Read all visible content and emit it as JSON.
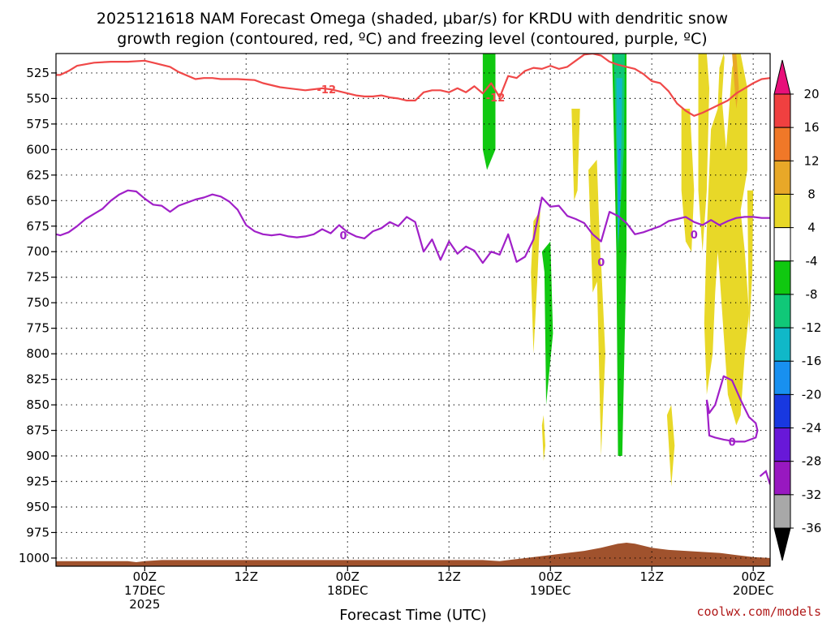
{
  "chart_data": {
    "type": "heatmap",
    "title_lines": [
      "2025121618 NAM Forecast Omega (shaded, μbar/s) for KRDU with dendritic snow",
      "growth region (contoured, red, ºC) and freezing level (contoured, purple, ºC)"
    ],
    "xlabel": "Forecast Time (UTC)",
    "credit": "coolwx.com/models",
    "y_ticks": [
      525,
      550,
      575,
      600,
      625,
      650,
      675,
      700,
      725,
      750,
      775,
      800,
      825,
      850,
      875,
      900,
      925,
      950,
      975,
      1000
    ],
    "ylim": [
      1008,
      506
    ],
    "xlim_hours": [
      -10.5,
      74
    ],
    "x_ticks": [
      {
        "hour": 0,
        "lines": [
          "00Z",
          "17DEC",
          "2025"
        ]
      },
      {
        "hour": 12,
        "lines": [
          "12Z"
        ]
      },
      {
        "hour": 24,
        "lines": [
          "00Z",
          "18DEC"
        ]
      },
      {
        "hour": 36,
        "lines": [
          "12Z"
        ]
      },
      {
        "hour": 48,
        "lines": [
          "00Z",
          "19DEC"
        ]
      },
      {
        "hour": 60,
        "lines": [
          "12Z"
        ]
      },
      {
        "hour": 72,
        "lines": [
          "00Z",
          "20DEC"
        ]
      }
    ],
    "grid": true,
    "colorbar": {
      "ticks": [
        20,
        16,
        12,
        8,
        4,
        -4,
        -8,
        -12,
        -16,
        -20,
        -24,
        -28,
        -32,
        -36
      ],
      "bands": [
        {
          "range": [
            16,
            20
          ],
          "color": "#f04040"
        },
        {
          "range": [
            12,
            16
          ],
          "color": "#f07828"
        },
        {
          "range": [
            8,
            12
          ],
          "color": "#e8a828"
        },
        {
          "range": [
            4,
            8
          ],
          "color": "#e8d828"
        },
        {
          "range": [
            -4,
            4
          ],
          "color": "#ffffff"
        },
        {
          "range": [
            -8,
            -4
          ],
          "color": "#10c810"
        },
        {
          "range": [
            -12,
            -8
          ],
          "color": "#10c878"
        },
        {
          "range": [
            -16,
            -12
          ],
          "color": "#10b8c8"
        },
        {
          "range": [
            -20,
            -16
          ],
          "color": "#1890f0"
        },
        {
          "range": [
            -24,
            -20
          ],
          "color": "#1838e0"
        },
        {
          "range": [
            -28,
            -24
          ],
          "color": "#6818d8"
        },
        {
          "range": [
            -32,
            -28
          ],
          "color": "#9818c0"
        },
        {
          "range": [
            -36,
            -32
          ],
          "color": "#a8a8a8"
        }
      ],
      "top_arrow_color": "#e8107a",
      "bottom_arrow_color": "#000000"
    },
    "dendritic_contour": {
      "value": -12,
      "label": "-12",
      "color": "#f04848",
      "x": [
        -10.5,
        -10,
        -9,
        -8,
        -6,
        -4,
        -2,
        0,
        1,
        3,
        4,
        6,
        7,
        8,
        9,
        11,
        13,
        14,
        16,
        17,
        19,
        21,
        22,
        23,
        24,
        25,
        26,
        27,
        28,
        29,
        30,
        31,
        32,
        33,
        34,
        35,
        36,
        37,
        38,
        39,
        40,
        41,
        42,
        43,
        44,
        45,
        46,
        47,
        48,
        49,
        50,
        51,
        52,
        53,
        54,
        55,
        56,
        57,
        58,
        59,
        60,
        61,
        62,
        63,
        64,
        65,
        66,
        67,
        68,
        69,
        70,
        71,
        72,
        73,
        74
      ],
      "y": [
        527,
        527,
        523,
        518,
        515,
        514,
        514,
        513,
        515,
        519,
        524,
        531,
        530,
        530,
        531,
        531,
        532,
        535,
        539,
        540,
        542,
        540,
        541,
        543,
        545,
        547,
        548,
        548,
        547,
        549,
        550,
        552,
        552,
        544,
        542,
        542,
        544,
        540,
        544,
        538,
        545,
        535,
        549,
        528,
        530,
        523,
        520,
        521,
        518,
        521,
        519,
        513,
        507,
        506,
        508,
        514,
        517,
        519,
        521,
        526,
        533,
        535,
        543,
        555,
        562,
        567,
        564,
        560,
        556,
        552,
        545,
        540,
        535,
        531,
        530
      ]
    },
    "freezing_contour": {
      "value": 0,
      "label": "0",
      "color": "#a020c8",
      "x": [
        -10.5,
        -10,
        -9,
        -8,
        -7,
        -6,
        -5,
        -4,
        -3,
        -2,
        -1,
        0,
        1,
        2,
        3,
        4,
        5,
        6,
        7,
        8,
        9,
        10,
        11,
        12,
        13,
        14,
        15,
        16,
        17,
        18,
        19,
        20,
        21,
        22,
        23,
        24,
        25,
        26,
        27,
        28,
        29,
        30,
        31,
        32,
        33,
        34,
        35,
        36,
        37,
        38,
        39,
        40,
        41,
        42,
        43,
        44,
        45,
        46,
        47,
        48,
        49,
        50,
        51,
        52,
        53,
        54,
        55,
        56,
        57,
        58,
        59,
        60,
        61,
        62,
        63,
        64,
        65,
        66,
        67,
        68,
        69,
        70,
        71,
        72,
        73,
        74
      ],
      "y": [
        683,
        684,
        681,
        675,
        668,
        663,
        658,
        650,
        644,
        640,
        641,
        648,
        654,
        655,
        661,
        655,
        652,
        649,
        647,
        644,
        646,
        651,
        659,
        674,
        680,
        683,
        684,
        683,
        685,
        686,
        685,
        683,
        678,
        682,
        674,
        681,
        685,
        687,
        680,
        677,
        671,
        675,
        666,
        671,
        700,
        688,
        708,
        690,
        702,
        695,
        699,
        711,
        700,
        703,
        683,
        710,
        705,
        688,
        647,
        656,
        655,
        665,
        668,
        672,
        683,
        690,
        661,
        665,
        672,
        683,
        681,
        678,
        675,
        670,
        668,
        666,
        671,
        674,
        669,
        674,
        670,
        667,
        666,
        666,
        667,
        667
      ]
    },
    "freezing_loop": {
      "label": "0",
      "x": [
        66.5,
        66.8,
        67.5,
        68.5,
        69.5,
        70.5,
        71.5,
        72.3,
        72.5,
        72.3,
        71,
        70,
        68.5,
        67.5,
        66.8,
        66.5
      ],
      "y": [
        845,
        858,
        850,
        822,
        826,
        845,
        862,
        868,
        875,
        882,
        886,
        886,
        884,
        882,
        880,
        845
      ]
    },
    "freezing_edge": {
      "x": [
        72.8,
        73.5,
        74
      ],
      "y": [
        920,
        915,
        928
      ]
    },
    "omega_shading": [
      {
        "value": -4,
        "x": [
          24,
          25.5,
          25.5,
          24,
          24.5,
          24
        ],
        "y": [
          506,
          506,
          545,
          572,
          545,
          506
        ]
      },
      {
        "value": -4,
        "x": [
          39.3,
          42,
          42.3,
          41.5,
          43.5,
          44.5,
          43.2,
          42,
          41.5,
          41.5,
          40.5,
          40,
          39.5,
          39.3
        ],
        "y": [
          506,
          506,
          580,
          640,
          612,
          590,
          640,
          686,
          745,
          850,
          850,
          710,
          640,
          506
        ]
      },
      {
        "value": -8,
        "x": [
          40,
          41.5,
          41.5,
          40.5,
          40,
          40
        ],
        "y": [
          506,
          506,
          600,
          620,
          600,
          506
        ]
      },
      {
        "value": -4,
        "x": [
          45.5,
          46.5,
          47.2,
          47.5,
          47,
          46,
          45.5,
          45.2,
          45,
          45.5
        ],
        "y": [
          720,
          700,
          780,
          850,
          930,
          960,
          930,
          850,
          760,
          720
        ]
      },
      {
        "value": -4,
        "x": [
          47,
          48.5,
          49.5,
          49,
          48,
          47,
          46.5,
          47
        ],
        "y": [
          700,
          700,
          780,
          850,
          920,
          980,
          850,
          700
        ]
      },
      {
        "value": -8,
        "x": [
          47,
          48,
          48.3,
          47.5,
          47.3,
          47
        ],
        "y": [
          700,
          690,
          780,
          850,
          720,
          700
        ]
      },
      {
        "value": -4,
        "x": [
          49,
          50,
          51,
          51.5,
          51,
          50,
          49.5,
          50,
          49.5,
          49
        ],
        "y": [
          690,
          660,
          610,
          630,
          660,
          700,
          760,
          800,
          830,
          690
        ]
      },
      {
        "value": -4,
        "x": [
          51.5,
          52,
          52.5,
          52,
          51.5
        ],
        "y": [
          850,
          840,
          880,
          920,
          850
        ]
      },
      {
        "value": -4,
        "x": [
          53.5,
          54,
          54.5,
          54,
          53.5
        ],
        "y": [
          750,
          740,
          850,
          950,
          750
        ]
      },
      {
        "value": -4,
        "x": [
          55,
          57.5,
          57.5,
          57,
          57.5,
          57.5,
          56.5,
          56,
          55.5,
          55.5,
          55,
          55
        ],
        "y": [
          506,
          506,
          600,
          800,
          900,
          950,
          960,
          920,
          800,
          650,
          550,
          506
        ]
      },
      {
        "value": -8,
        "x": [
          55.3,
          57,
          57,
          56.5,
          56,
          55.8,
          55.3
        ],
        "y": [
          506,
          506,
          700,
          900,
          900,
          700,
          506
        ]
      },
      {
        "value": -12,
        "x": [
          55.5,
          56.8,
          56.7,
          56,
          55.8,
          55.5
        ],
        "y": [
          506,
          506,
          600,
          700,
          600,
          506
        ]
      },
      {
        "value": -16,
        "x": [
          55.8,
          56.5,
          56.3,
          56,
          55.8
        ],
        "y": [
          530,
          530,
          650,
          690,
          530
        ]
      },
      {
        "value": -20,
        "x": [
          56,
          56.3,
          56.1,
          56
        ],
        "y": [
          600,
          600,
          690,
          600
        ]
      },
      {
        "value": -4,
        "x": [
          58,
          58.5,
          59,
          58.5,
          58
        ],
        "y": [
          830,
          800,
          850,
          960,
          830
        ]
      },
      {
        "value": 4,
        "x": [
          50.5,
          51.5,
          51.2,
          50.8,
          50.5
        ],
        "y": [
          560,
          560,
          640,
          650,
          560
        ]
      },
      {
        "value": 4,
        "x": [
          52.5,
          53.5,
          53.8,
          54,
          53,
          52.5
        ],
        "y": [
          620,
          610,
          680,
          720,
          740,
          620
        ]
      },
      {
        "value": 4,
        "x": [
          46,
          46.8,
          46.5,
          46,
          45.7,
          46
        ],
        "y": [
          670,
          660,
          720,
          800,
          720,
          670
        ]
      },
      {
        "value": 4,
        "x": [
          53.5,
          54,
          54.5,
          54,
          53.5
        ],
        "y": [
          720,
          710,
          800,
          900,
          720
        ]
      },
      {
        "value": 4,
        "x": [
          47,
          47.2,
          47.4,
          47.2,
          47
        ],
        "y": [
          870,
          860,
          890,
          905,
          870
        ]
      },
      {
        "value": 4,
        "x": [
          61.8,
          62.3,
          62.7,
          62.3,
          61.8
        ],
        "y": [
          860,
          850,
          890,
          930,
          860
        ]
      },
      {
        "value": 4,
        "x": [
          67,
          67.8,
          68,
          68.5,
          68.6,
          68.3,
          68.8,
          69.5,
          70,
          70.5,
          71.3,
          71.3,
          70.5,
          71,
          71.5,
          71,
          70.5,
          70,
          69,
          68.5,
          68,
          67.8,
          67.5,
          67.2,
          66.5,
          66.2,
          66.5,
          67
        ],
        "y": [
          580,
          560,
          520,
          506,
          510,
          550,
          600,
          520,
          506,
          506,
          540,
          620,
          660,
          700,
          760,
          800,
          860,
          870,
          840,
          780,
          720,
          700,
          740,
          800,
          840,
          770,
          680,
          580
        ]
      },
      {
        "value": 4,
        "x": [
          65.5,
          66.5,
          66.8,
          66.5,
          66,
          65.5,
          65.5
        ],
        "y": [
          506,
          506,
          540,
          640,
          700,
          640,
          506
        ]
      },
      {
        "value": 4,
        "x": [
          63.5,
          64.5,
          65,
          64.7,
          64,
          63.5,
          63.5
        ],
        "y": [
          560,
          560,
          640,
          700,
          690,
          640,
          560
        ]
      },
      {
        "value": 8,
        "x": [
          69.5,
          70,
          70.3,
          70,
          69.5
        ],
        "y": [
          506,
          506,
          540,
          560,
          506
        ]
      },
      {
        "value": 4,
        "x": [
          71.3,
          72,
          71.9,
          71.5,
          71.3
        ],
        "y": [
          640,
          640,
          720,
          780,
          640
        ]
      }
    ],
    "terrain": {
      "color": "#a0522d",
      "x": [
        -10.5,
        -2,
        -1,
        0,
        2,
        10,
        30,
        40,
        42,
        44,
        46,
        48,
        50,
        52,
        54,
        55,
        56,
        57,
        58,
        59,
        60,
        61,
        62,
        64,
        66,
        68,
        70,
        72,
        74
      ],
      "y": [
        1003,
        1003,
        1004,
        1003,
        1002,
        1002,
        1002,
        1002,
        1003,
        1001,
        999,
        997,
        995,
        993,
        990,
        988,
        986,
        985,
        986,
        988,
        990,
        991,
        992,
        993,
        994,
        995,
        997,
        999,
        1000
      ]
    }
  }
}
